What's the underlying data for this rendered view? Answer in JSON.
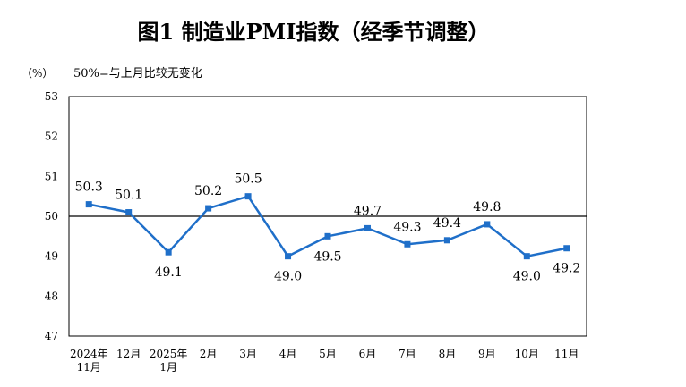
{
  "chart_data": {
    "type": "line",
    "title": "图1  制造业PMI指数（经季节调整）",
    "ylabel": "（%）",
    "annotation": "50%=与上月比较无变化",
    "ylim": [
      47,
      53
    ],
    "yticks": [
      47,
      48,
      49,
      50,
      51,
      52,
      53
    ],
    "reference_line": 50,
    "grid": false,
    "categories": [
      [
        "2024年",
        "11月"
      ],
      [
        "12月"
      ],
      [
        "2025年",
        "1月"
      ],
      [
        "2月"
      ],
      [
        "3月"
      ],
      [
        "4月"
      ],
      [
        "5月"
      ],
      [
        "6月"
      ],
      [
        "7月"
      ],
      [
        "8月"
      ],
      [
        "9月"
      ],
      [
        "10月"
      ],
      [
        "11月"
      ]
    ],
    "series": [
      {
        "values": [
          50.3,
          50.1,
          49.1,
          50.2,
          50.5,
          49.0,
          49.5,
          49.7,
          49.3,
          49.4,
          49.8,
          49.0,
          49.2
        ],
        "labels": [
          "50.3",
          "50.1",
          "49.1",
          "50.2",
          "50.5",
          "49.0",
          "49.5",
          "49.7",
          "49.3",
          "49.4",
          "49.8",
          "49.0",
          "49.2"
        ],
        "label_position": [
          "above",
          "above",
          "below",
          "above",
          "above",
          "below",
          "below",
          "above",
          "above",
          "above",
          "above",
          "below",
          "below"
        ],
        "color": "#1f6fc9"
      }
    ],
    "axis_color": "#000000",
    "text_color": "#000000"
  }
}
